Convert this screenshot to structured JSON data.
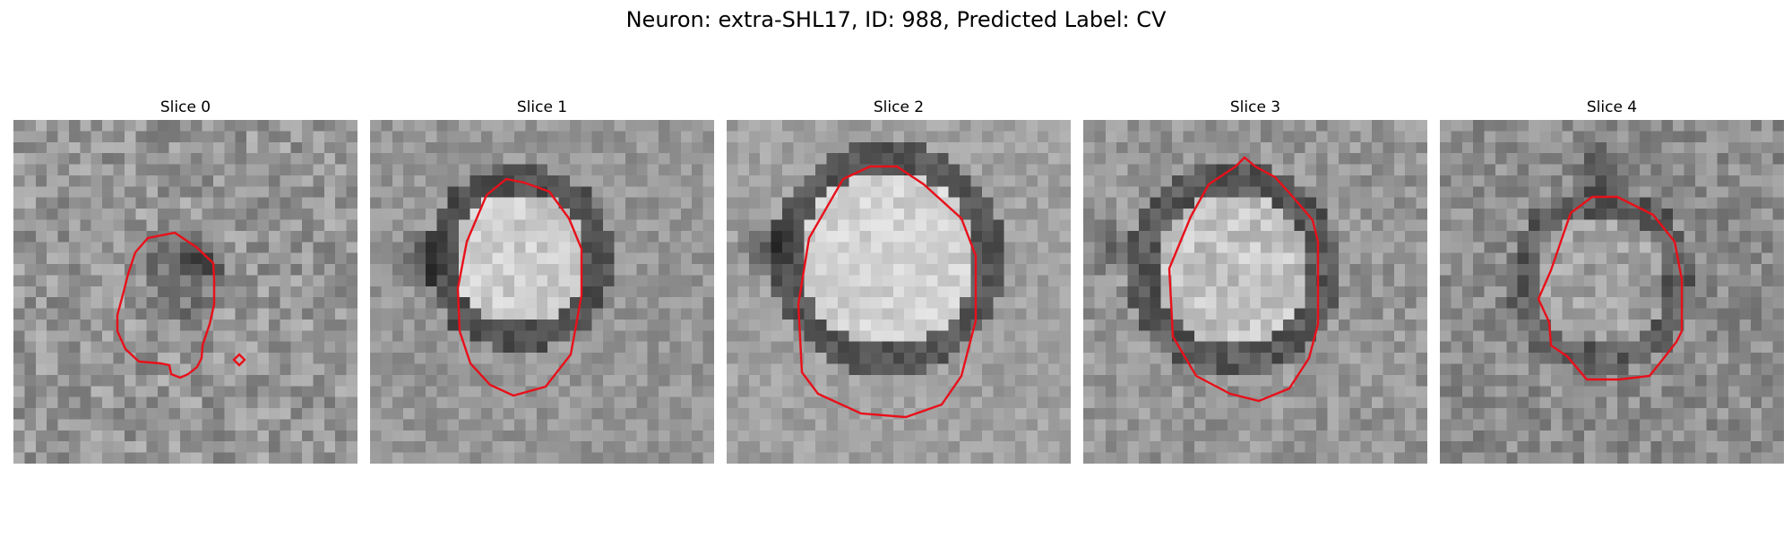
{
  "title": "Neuron: extra-SHL17, ID: 988, Predicted Label: CV",
  "contour_color": "#e8101a",
  "slices": [
    {
      "label": "Slice 0"
    },
    {
      "label": "Slice 1"
    },
    {
      "label": "Slice 2"
    },
    {
      "label": "Slice 3"
    },
    {
      "label": "Slice 4"
    }
  ]
}
